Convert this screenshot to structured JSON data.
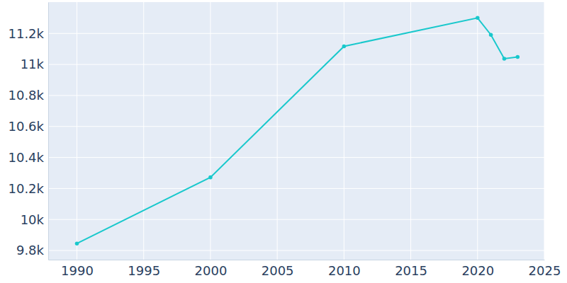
{
  "chart_data": {
    "type": "line",
    "x": [
      1990,
      2000,
      2010,
      2020,
      2021,
      2022,
      2023
    ],
    "values": [
      9845,
      10272,
      11117,
      11300,
      11191,
      11037,
      11048
    ],
    "color": "#19c8cc",
    "marker": "circle",
    "xlim": [
      1987.85,
      2025
    ],
    "xticks": [
      1990,
      1995,
      2000,
      2005,
      2010,
      2015,
      2020,
      2025
    ],
    "ylim": [
      9741,
      11402
    ],
    "yticks": [
      {
        "value": 9800,
        "label": "9.8k"
      },
      {
        "value": 10000,
        "label": "10k"
      },
      {
        "value": 10200,
        "label": "10.2k"
      },
      {
        "value": 10400,
        "label": "10.4k"
      },
      {
        "value": 10600,
        "label": "10.6k"
      },
      {
        "value": 10800,
        "label": "10.8k"
      },
      {
        "value": 11000,
        "label": "11k"
      },
      {
        "value": 11200,
        "label": "11.2k"
      }
    ],
    "grid": true
  }
}
